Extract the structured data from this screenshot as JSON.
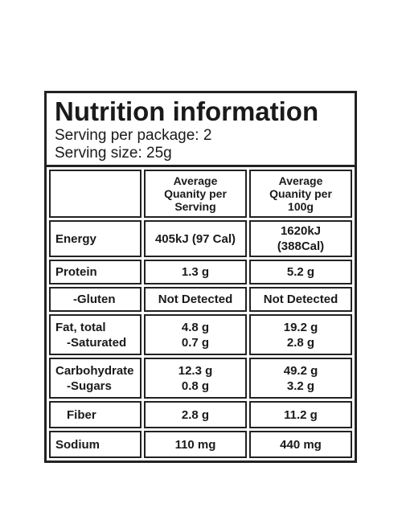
{
  "header": {
    "title": "Nutrition information",
    "lines": [
      "Serving per package: 2",
      "Serving size: 25g"
    ]
  },
  "table": {
    "headers": [
      "Average Quanity per Serving",
      "Average Quanity per 100g"
    ],
    "rows": [
      [
        [
          "Energy"
        ],
        [
          "405kJ (97 Cal)"
        ],
        [
          "1620kJ (388Cal)"
        ]
      ],
      [
        [
          "Protein"
        ],
        [
          "1.3 g"
        ],
        [
          "5.2 g"
        ]
      ],
      [
        [
          "-Gluten"
        ],
        [
          "Not Detected"
        ],
        [
          "Not Detected"
        ]
      ],
      [
        [
          "Fat, total",
          "-Saturated"
        ],
        [
          "4.8 g",
          "0.7 g"
        ],
        [
          "19.2 g",
          "2.8 g"
        ]
      ],
      [
        [
          "Carbohydrate",
          "-Sugars"
        ],
        [
          "12.3 g",
          "0.8 g"
        ],
        [
          "49.2 g",
          "3.2 g"
        ]
      ],
      [
        [
          "Fiber"
        ],
        [
          "2.8 g"
        ],
        [
          "11.2 g"
        ]
      ],
      [
        [
          "Sodium"
        ],
        [
          "110 mg"
        ],
        [
          "440 mg"
        ]
      ]
    ]
  }
}
